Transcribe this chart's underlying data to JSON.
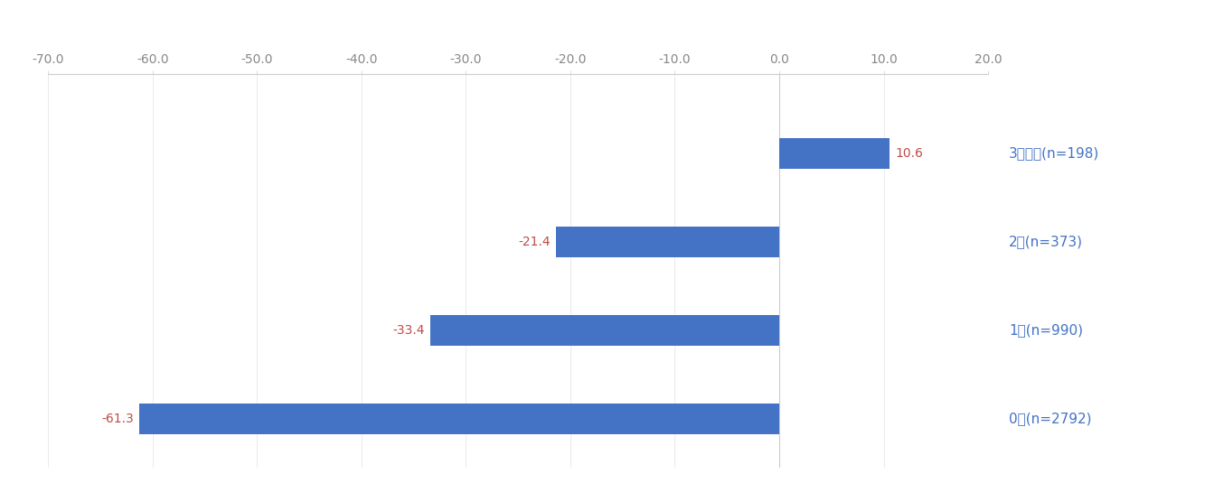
{
  "categories": [
    "3個以上(n=198)",
    "2個(n=373)",
    "1個(n=990)",
    "0個(n=2792)"
  ],
  "values": [
    10.6,
    -21.4,
    -33.4,
    -61.3
  ],
  "bar_color": "#4472C4",
  "value_label_color": "#BE4B48",
  "category_label_color": "#4472C4",
  "xlim": [
    -70,
    20
  ],
  "xticks": [
    -70.0,
    -60.0,
    -50.0,
    -40.0,
    -30.0,
    -20.0,
    -10.0,
    0.0,
    10.0,
    20.0
  ],
  "background_color": "#ffffff",
  "bar_height": 0.35,
  "value_fontsize": 10,
  "category_fontsize": 11,
  "tick_fontsize": 10,
  "tick_color": "#888888",
  "spine_color": "#cccccc",
  "grid_color": "#e8e8e8"
}
